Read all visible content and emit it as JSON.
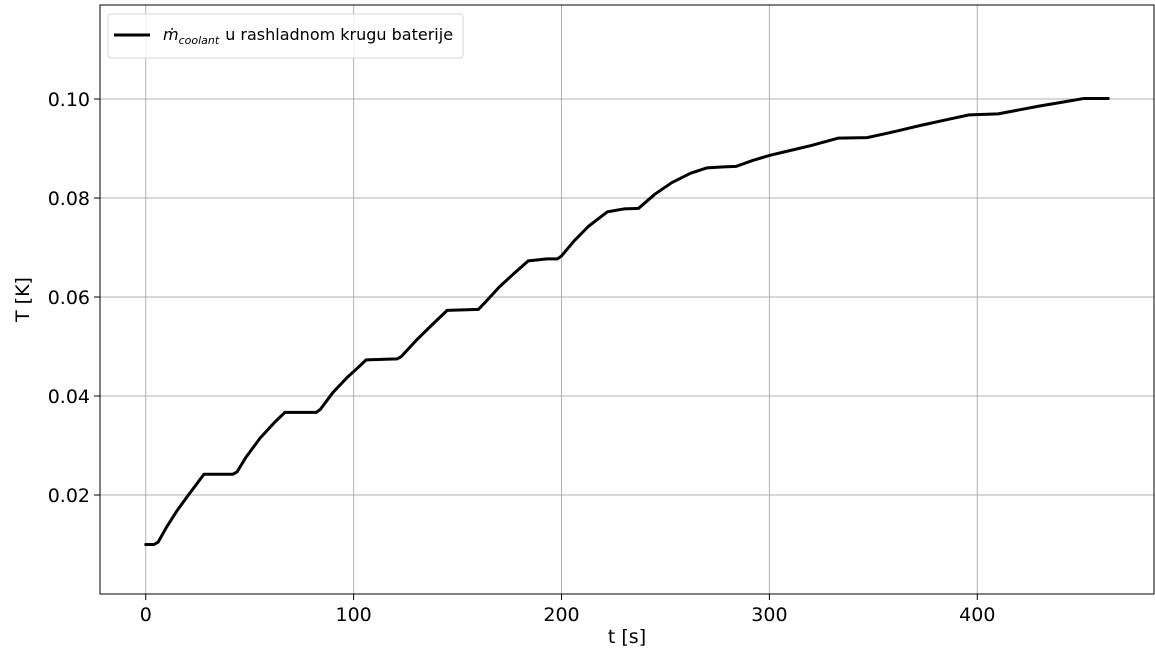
{
  "chart_data": {
    "type": "line",
    "xlabel": "t [s]",
    "ylabel": "T [K]",
    "xlim": [
      -22,
      485
    ],
    "ylim": [
      0,
      0.119
    ],
    "xticks": [
      0,
      100,
      200,
      300,
      400
    ],
    "xtick_labels": [
      "0",
      "100",
      "200",
      "300",
      "400"
    ],
    "yticks": [
      0.02,
      0.04,
      0.06,
      0.08,
      0.1
    ],
    "ytick_labels": [
      "0.02",
      "0.04",
      "0.06",
      "0.08",
      "0.10"
    ],
    "grid": true,
    "legend_position": "top-left",
    "series": [
      {
        "legend_symbol": "ṁ",
        "legend_subscript": "coolant",
        "legend_text": "u rashladnom krugu baterije",
        "color": "#000000",
        "x": [
          0,
          4,
          6,
          10,
          15,
          20,
          25,
          28,
          42,
          44,
          48,
          55,
          62,
          67,
          82,
          84,
          90,
          97,
          102,
          106,
          121,
          123,
          130,
          138,
          145,
          160,
          163,
          170,
          177,
          184,
          193,
          198,
          200,
          206,
          213,
          222,
          230,
          237,
          245,
          253,
          262,
          270,
          278,
          284,
          292,
          300,
          310,
          320,
          333,
          347,
          360,
          372,
          385,
          396,
          410,
          420,
          430,
          440,
          451,
          463
        ],
        "y": [
          0.01,
          0.01,
          0.0105,
          0.0135,
          0.0168,
          0.0197,
          0.0225,
          0.0242,
          0.0242,
          0.0247,
          0.0275,
          0.0315,
          0.0347,
          0.0367,
          0.0367,
          0.0373,
          0.0407,
          0.0438,
          0.0457,
          0.0473,
          0.0475,
          0.048,
          0.0512,
          0.0545,
          0.0573,
          0.0575,
          0.0588,
          0.062,
          0.0647,
          0.0673,
          0.0677,
          0.0677,
          0.0683,
          0.0713,
          0.0743,
          0.0772,
          0.0778,
          0.0779,
          0.0808,
          0.0831,
          0.085,
          0.0861,
          0.0863,
          0.0864,
          0.0876,
          0.0886,
          0.0896,
          0.0906,
          0.0921,
          0.0922,
          0.0934,
          0.0946,
          0.0958,
          0.0968,
          0.097,
          0.0978,
          0.0986,
          0.0993,
          0.1001,
          0.1001
        ]
      }
    ]
  }
}
